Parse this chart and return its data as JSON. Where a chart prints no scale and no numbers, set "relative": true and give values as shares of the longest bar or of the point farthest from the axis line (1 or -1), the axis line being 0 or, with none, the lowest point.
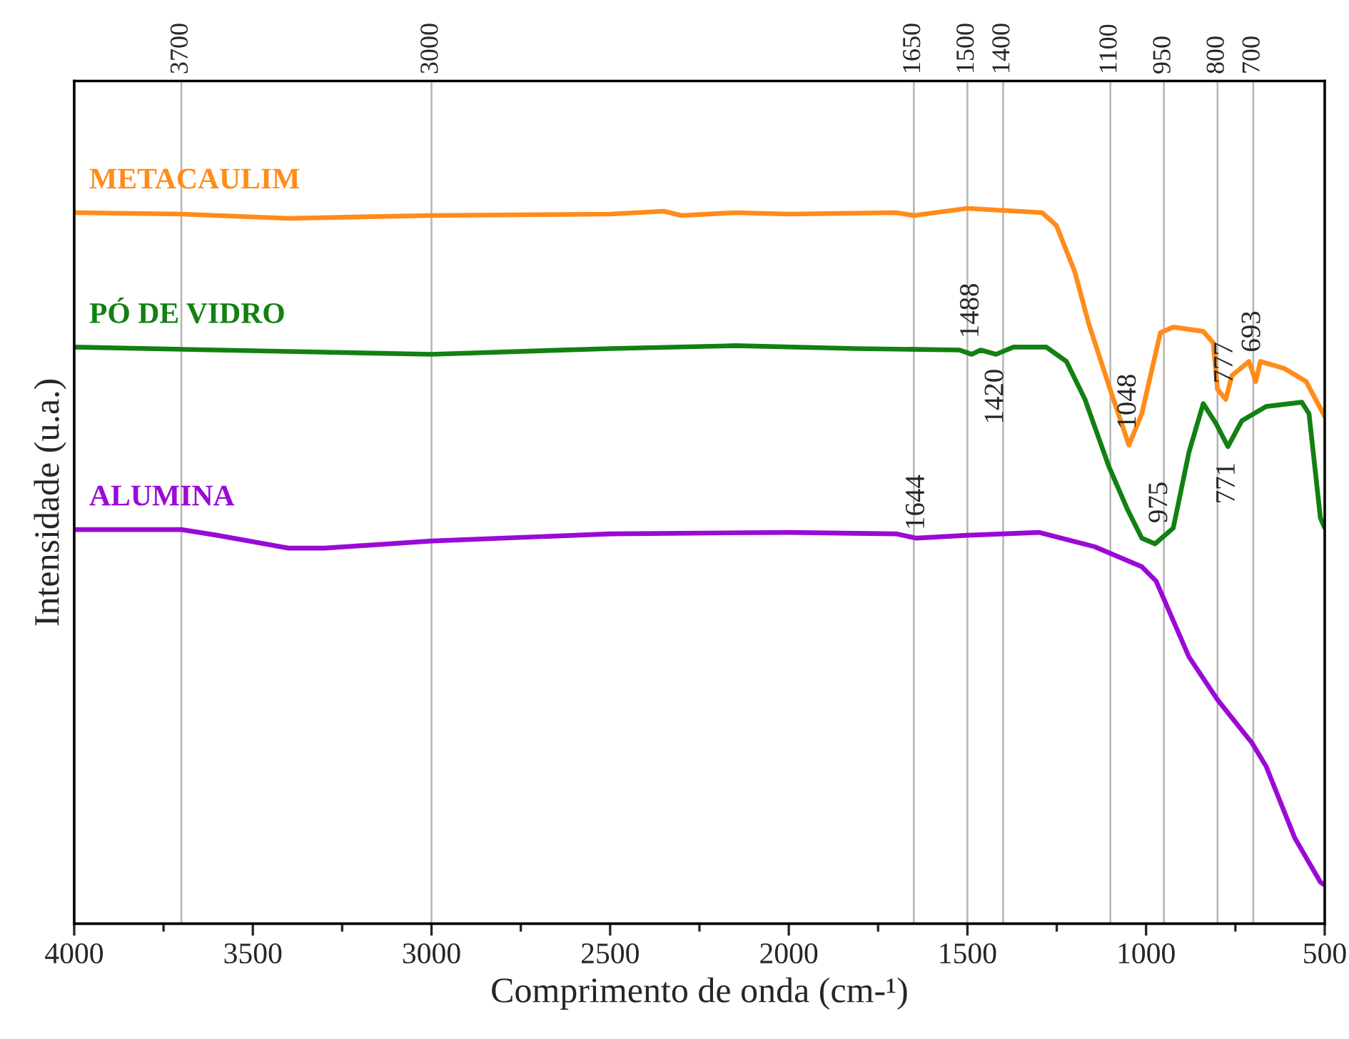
{
  "chart_data": {
    "type": "line",
    "relative": true,
    "xlabel": "Comprimento de onda (cm-¹)",
    "ylabel": "Intensidade (u.a.)",
    "xlim": [
      4000,
      500
    ],
    "xticks": [
      4000,
      3500,
      3000,
      2500,
      2000,
      1500,
      1000,
      500
    ],
    "grid": false,
    "legend": false,
    "marker": "none",
    "line_style": "solid",
    "series": [
      {
        "name": "METACAULIM",
        "color": "#ff8c1a",
        "x": [
          4000,
          3700,
          3400,
          3000,
          2500,
          2350,
          2300,
          2150,
          2000,
          1700,
          1650,
          1500,
          1291,
          1251,
          1200,
          1160,
          1104,
          1048,
          1012,
          960,
          924,
          840,
          812,
          800,
          777,
          760,
          712,
          693,
          680,
          612,
          552,
          500
        ],
        "values": [
          0.994,
          0.992,
          0.986,
          0.99,
          0.992,
          0.996,
          0.99,
          0.994,
          0.992,
          0.994,
          0.99,
          1.0,
          0.994,
          0.976,
          0.912,
          0.838,
          0.752,
          0.669,
          0.713,
          0.826,
          0.834,
          0.828,
          0.812,
          0.747,
          0.733,
          0.766,
          0.786,
          0.758,
          0.786,
          0.776,
          0.758,
          0.709
        ]
      },
      {
        "name": "PÓ DE VIDRO",
        "color": "#128012",
        "x": [
          4000,
          3400,
          3000,
          2500,
          2150,
          1811,
          1523,
          1488,
          1463,
          1420,
          1371,
          1279,
          1223,
          1171,
          1104,
          1052,
          1012,
          975,
          924,
          880,
          840,
          804,
          771,
          732,
          664,
          564,
          544,
          512,
          500
        ],
        "values": [
          0.806,
          0.8,
          0.796,
          0.804,
          0.808,
          0.804,
          0.802,
          0.796,
          0.802,
          0.796,
          0.806,
          0.806,
          0.786,
          0.733,
          0.639,
          0.579,
          0.539,
          0.531,
          0.553,
          0.659,
          0.727,
          0.699,
          0.667,
          0.703,
          0.723,
          0.729,
          0.713,
          0.567,
          0.553
        ]
      },
      {
        "name": "ALUMINA",
        "color": "#9a0ad6",
        "x": [
          4000,
          3700,
          3600,
          3400,
          3300,
          3000,
          2500,
          2000,
          1700,
          1644,
          1500,
          1300,
          1144,
          1012,
          972,
          880,
          800,
          704,
          664,
          584,
          512,
          500
        ],
        "values": [
          0.551,
          0.551,
          0.543,
          0.525,
          0.525,
          0.535,
          0.545,
          0.547,
          0.545,
          0.539,
          0.543,
          0.547,
          0.527,
          0.499,
          0.479,
          0.373,
          0.313,
          0.253,
          0.22,
          0.12,
          0.058,
          0.054
        ]
      }
    ],
    "ref_lines": [
      {
        "axis": "x",
        "value": 3700,
        "label": "3700",
        "color": "#b4b4b4"
      },
      {
        "axis": "x",
        "value": 3000,
        "label": "3000",
        "color": "#b4b4b4"
      },
      {
        "axis": "x",
        "value": 1650,
        "label": "1650",
        "color": "#b4b4b4"
      },
      {
        "axis": "x",
        "value": 1500,
        "label": "1500",
        "color": "#b4b4b4"
      },
      {
        "axis": "x",
        "value": 1400,
        "label": "1400",
        "color": "#b4b4b4"
      },
      {
        "axis": "x",
        "value": 1100,
        "label": "1100",
        "color": "#b4b4b4"
      },
      {
        "axis": "x",
        "value": 950,
        "label": "950",
        "color": "#b4b4b4"
      },
      {
        "axis": "x",
        "value": 800,
        "label": "800",
        "color": "#b4b4b4"
      },
      {
        "axis": "x",
        "value": 700,
        "label": "700",
        "color": "#b4b4b4"
      }
    ],
    "annotations": [
      {
        "text": "1488",
        "x": 1488,
        "y": 0.796
      },
      {
        "text": "1420",
        "x": 1419,
        "y": 0.737
      },
      {
        "text": "1048",
        "x": 1048,
        "y": 0.669
      },
      {
        "text": "777",
        "x": 777,
        "y": 0.733
      },
      {
        "text": "693",
        "x": 700,
        "y": 0.828
      },
      {
        "text": "975",
        "x": 960,
        "y": 0.589
      },
      {
        "text": "771",
        "x": 771,
        "y": 0.667
      },
      {
        "text": "1644",
        "x": 1640,
        "y": 0.589
      }
    ]
  }
}
